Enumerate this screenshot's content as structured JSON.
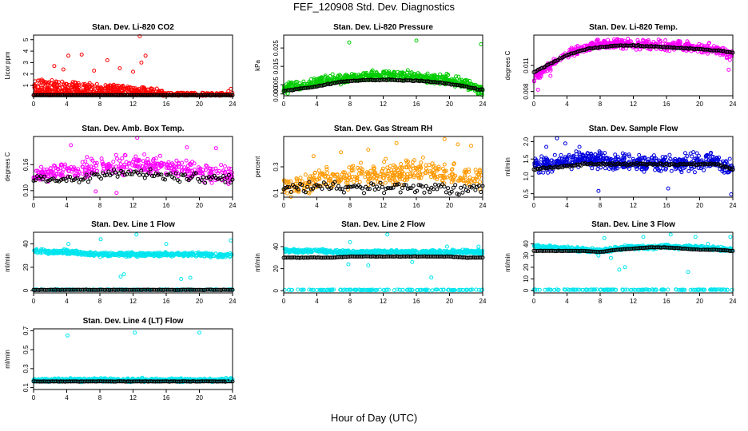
{
  "figure": {
    "title": "FEF_120908  Std. Dev. Diagnostics",
    "xlabel": "Hour of Day (UTC)"
  },
  "chart_data": [
    {
      "type": "scatter",
      "title": "Stan. Dev. Li-820 CO2",
      "ylabel": "Licor ppm",
      "xlim": [
        0,
        24
      ],
      "ylim": [
        0.1,
        5.4
      ],
      "xticks": [
        "0",
        "4",
        "8",
        "12",
        "16",
        "20",
        "24"
      ],
      "yticks": [
        {
          "v": 1,
          "l": "1"
        },
        {
          "v": 2,
          "l": "2"
        },
        {
          "v": 3,
          "l": "3"
        },
        {
          "v": 4,
          "l": "4"
        },
        {
          "v": 5,
          "l": "5"
        }
      ],
      "color": "#ff0000",
      "cloud": [
        0,
        0.15,
        0.95,
        0.65,
        0.38,
        0.05
      ],
      "cloud_end": 15.5,
      "cloud_after": [
        0.3,
        0.06
      ],
      "base": [
        0.15,
        0.15,
        0.15,
        0.15,
        0.15,
        0.15,
        0.15
      ],
      "outliers": [
        [
          12.8,
          5.3
        ],
        [
          13.5,
          3.6
        ],
        [
          4.2,
          3.6
        ],
        [
          5.8,
          3.7
        ],
        [
          8.9,
          3.2
        ],
        [
          13.0,
          3.0
        ],
        [
          2.5,
          2.7
        ],
        [
          3.6,
          2.4
        ],
        [
          10.4,
          2.5
        ],
        [
          7.3,
          2.3
        ],
        [
          12.0,
          2.2
        ],
        [
          23.8,
          0.7
        ],
        [
          23.5,
          0.5
        ]
      ]
    },
    {
      "type": "scatter",
      "title": "Stan. Dev. Li-820 Pressure",
      "ylabel": "kPa",
      "xlim": [
        0,
        24
      ],
      "ylim": [
        -0.001,
        0.032
      ],
      "xticks": [
        "0",
        "4",
        "8",
        "12",
        "16",
        "20",
        "24"
      ],
      "yticks": [
        {
          "v": 0.0,
          "l": "0.000"
        },
        {
          "v": 0.005,
          "l": "0.005"
        },
        {
          "v": 0.015,
          "l": "0.015"
        },
        {
          "v": 0.025,
          "l": "0.025"
        }
      ],
      "color": "#00cc00",
      "cloud": [
        0.0035,
        0.0045,
        0.0068,
        0.0078,
        0.0085,
        0.0095,
        0.0105,
        0.01,
        0.0092,
        0.0085,
        0.0075,
        0.0055,
        0.0015
      ],
      "cloud_spread": 0.0038,
      "base": [
        0.0015,
        0.0028,
        0.004,
        0.006,
        0.007,
        0.0075,
        0.0078,
        0.0075,
        0.0072,
        0.0065,
        0.0055,
        0.004,
        0.002
      ],
      "outliers": [
        [
          7.9,
          0.028
        ],
        [
          16.0,
          0.029
        ],
        [
          23.8,
          0.027
        ],
        [
          0.5,
          0.0002
        ],
        [
          23.5,
          0.0002
        ]
      ]
    },
    {
      "type": "scatter",
      "title": "Stan. Dev. Li-820 Temp.",
      "ylabel": "degrees C",
      "xlim": [
        0,
        24
      ],
      "ylim": [
        0.0075,
        0.0145
      ],
      "xticks": [
        "0",
        "4",
        "8",
        "12",
        "16",
        "20",
        "24"
      ],
      "yticks": [
        {
          "v": 0.008,
          "l": "0.008"
        },
        {
          "v": 0.011,
          "l": "0.011"
        }
      ],
      "color": "#ff00ff",
      "cloud": [
        0.0095,
        0.011,
        0.0123,
        0.013,
        0.0134,
        0.0135,
        0.0135,
        0.0134,
        0.0133,
        0.0132,
        0.0131,
        0.0128,
        0.012
      ],
      "cloud_spread": 0.0008,
      "base": [
        0.0102,
        0.0112,
        0.0122,
        0.0128,
        0.0131,
        0.0133,
        0.0133,
        0.0132,
        0.0131,
        0.013,
        0.0129,
        0.0127,
        0.0125
      ],
      "outliers": [
        [
          0.5,
          0.0082
        ],
        [
          2.0,
          0.0098
        ],
        [
          23.5,
          0.0105
        ]
      ]
    },
    {
      "type": "scatter",
      "title": "Stan. Dev. Amb. Box Temp.",
      "ylabel": "degrees C",
      "xlim": [
        0,
        24
      ],
      "ylim": [
        0.085,
        0.225
      ],
      "xticks": [
        "0",
        "4",
        "8",
        "12",
        "16",
        "20",
        "24"
      ],
      "yticks": [
        {
          "v": 0.1,
          "l": "0.10"
        },
        {
          "v": 0.16,
          "l": "0.16"
        }
      ],
      "color": "#ff00ff",
      "cloud": [
        0.135,
        0.14,
        0.145,
        0.15,
        0.155,
        0.16,
        0.16,
        0.158,
        0.155,
        0.15,
        0.145,
        0.14,
        0.135
      ],
      "cloud_spread": 0.03,
      "base": [
        0.13,
        0.128,
        0.125,
        0.128,
        0.138,
        0.142,
        0.14,
        0.138,
        0.135,
        0.132,
        0.13,
        0.128,
        0.125
      ],
      "outliers": [
        [
          12.5,
          0.222
        ],
        [
          4.5,
          0.205
        ],
        [
          18.5,
          0.2
        ],
        [
          22.0,
          0.198
        ],
        [
          7.5,
          0.098
        ],
        [
          10.0,
          0.095
        ]
      ]
    },
    {
      "type": "scatter",
      "title": "Stan. Dev. Gas Stream RH",
      "ylabel": "percent",
      "xlim": [
        0,
        24
      ],
      "ylim": [
        0.07,
        0.53
      ],
      "xticks": [
        "0",
        "4",
        "8",
        "12",
        "16",
        "20",
        "24"
      ],
      "yticks": [
        {
          "v": 0.1,
          "l": "0.1"
        },
        {
          "v": 0.3,
          "l": "0.3"
        }
      ],
      "color": "#ff9900",
      "cloud": [
        0.15,
        0.16,
        0.2,
        0.22,
        0.23,
        0.24,
        0.24,
        0.25,
        0.26,
        0.25,
        0.24,
        0.23,
        0.22
      ],
      "cloud_spread": 0.12,
      "base": [
        0.15,
        0.14,
        0.14,
        0.14,
        0.14,
        0.14,
        0.14,
        0.14,
        0.14,
        0.14,
        0.14,
        0.14,
        0.14
      ],
      "outliers": [
        [
          10.2,
          0.43
        ],
        [
          13.6,
          0.48
        ],
        [
          19.4,
          0.51
        ],
        [
          21.0,
          0.47
        ],
        [
          3.6,
          0.38
        ],
        [
          6.9,
          0.41
        ],
        [
          12.3,
          0.36
        ],
        [
          16.8,
          0.37
        ],
        [
          22.6,
          0.46
        ],
        [
          9.3,
          0.33
        ],
        [
          15.0,
          0.34
        ],
        [
          18.0,
          0.3
        ],
        [
          20.5,
          0.32
        ],
        [
          14.2,
          0.29
        ],
        [
          11.0,
          0.26
        ],
        [
          22.3,
          0.28
        ]
      ]
    },
    {
      "type": "scatter",
      "title": "Stan. Dev. Sample Flow",
      "ylabel": "ml/min",
      "xlim": [
        0,
        24
      ],
      "ylim": [
        0.4,
        2.15
      ],
      "xticks": [
        "0",
        "4",
        "8",
        "12",
        "16",
        "20",
        "24"
      ],
      "yticks": [
        {
          "v": 0.5,
          "l": "0.5"
        },
        {
          "v": 1.0,
          "l": "1.0"
        },
        {
          "v": 1.5,
          "l": "1.5"
        },
        {
          "v": 2.0,
          "l": "2.0"
        }
      ],
      "color": "#0000dd",
      "cloud": [
        1.3,
        1.35,
        1.45,
        1.5,
        1.45,
        1.42,
        1.4,
        1.4,
        1.4,
        1.4,
        1.4,
        1.4,
        1.3
      ],
      "cloud_spread": 0.35,
      "base": [
        1.2,
        1.25,
        1.3,
        1.35,
        1.35,
        1.35,
        1.35,
        1.35,
        1.35,
        1.35,
        1.35,
        1.35,
        1.2
      ],
      "outliers": [
        [
          2.8,
          2.1
        ],
        [
          3.8,
          1.95
        ],
        [
          1.5,
          1.85
        ],
        [
          5.5,
          1.85
        ],
        [
          7.8,
          0.58
        ],
        [
          16.2,
          0.65
        ],
        [
          23.8,
          0.48
        ]
      ]
    },
    {
      "type": "scatter",
      "title": "Stan. Dev. Line 1 Flow",
      "ylabel": "ml/min",
      "xlim": [
        0,
        24
      ],
      "ylim": [
        -2,
        50
      ],
      "xticks": [
        "0",
        "4",
        "8",
        "12",
        "16",
        "20",
        "24"
      ],
      "yticks": [
        {
          "v": 0,
          "l": "0"
        },
        {
          "v": 20,
          "l": "20"
        },
        {
          "v": 40,
          "l": "40"
        }
      ],
      "color": "#00e5ee",
      "cloud": [
        34,
        33,
        33,
        32,
        31,
        31,
        31,
        31,
        31,
        31,
        31,
        30,
        30
      ],
      "cloud_spread": 2.5,
      "base": [
        0.6,
        0.6,
        0.6,
        0.6,
        0.6,
        0.6,
        0.6,
        0.6,
        0.6,
        0.6,
        0.6,
        0.6,
        0.6
      ],
      "outliers": [
        [
          4.2,
          40
        ],
        [
          8.1,
          44
        ],
        [
          12.4,
          48
        ],
        [
          16.0,
          40
        ],
        [
          23.8,
          43
        ],
        [
          10.5,
          12
        ],
        [
          10.9,
          14
        ],
        [
          17.8,
          10
        ],
        [
          18.9,
          11
        ]
      ]
    },
    {
      "type": "scatter",
      "title": "Stan. Dev. Line 2 Flow",
      "ylabel": "ml/min",
      "xlim": [
        0,
        24
      ],
      "ylim": [
        -2,
        53
      ],
      "xticks": [
        "0",
        "4",
        "8",
        "12",
        "16",
        "20",
        "24"
      ],
      "yticks": [
        {
          "v": 0,
          "l": "0"
        },
        {
          "v": 20,
          "l": "20"
        },
        {
          "v": 40,
          "l": "40"
        }
      ],
      "color": "#00e5ee",
      "cloud": [
        37,
        36,
        36,
        35,
        35,
        35,
        35,
        35,
        35,
        35,
        35,
        35,
        35
      ],
      "cloud_spread": 2.5,
      "base": [
        30,
        30,
        30,
        30,
        31,
        31,
        31,
        31,
        31,
        31,
        31,
        30,
        30
      ],
      "outliers": [
        [
          12.5,
          51
        ],
        [
          8.0,
          44
        ],
        [
          23.5,
          40
        ],
        [
          17.8,
          12
        ],
        [
          19.7,
          40
        ],
        [
          7.8,
          24
        ],
        [
          10.2,
          23
        ],
        [
          15.5,
          26
        ]
      ]
    },
    {
      "type": "scatter",
      "title": "Stan. Dev. Line 3 Flow",
      "ylabel": "ml/min",
      "xlim": [
        0,
        24
      ],
      "ylim": [
        -2,
        50
      ],
      "xticks": [
        "0",
        "4",
        "8",
        "12",
        "16",
        "20",
        "24"
      ],
      "yticks": [
        {
          "v": 0,
          "l": "0"
        },
        {
          "v": 10,
          "l": "10"
        },
        {
          "v": 20,
          "l": "20"
        },
        {
          "v": 30,
          "l": "30"
        },
        {
          "v": 40,
          "l": "40"
        }
      ],
      "color": "#00e5ee",
      "cloud": [
        38,
        37,
        36,
        35,
        34,
        36,
        37,
        37,
        38,
        37,
        37,
        36,
        35
      ],
      "cloud_spread": 2.5,
      "base": [
        34,
        34,
        34,
        34,
        33,
        35,
        36,
        37,
        37,
        36,
        35,
        35,
        34
      ],
      "outliers": [
        [
          8.5,
          45
        ],
        [
          13.2,
          46
        ],
        [
          16.5,
          48
        ],
        [
          19.5,
          46
        ],
        [
          23.7,
          46
        ],
        [
          10.3,
          18
        ],
        [
          11.0,
          20
        ],
        [
          18.6,
          16
        ],
        [
          7.8,
          30
        ],
        [
          9.3,
          28
        ],
        [
          20.2,
          38
        ],
        [
          21.0,
          40
        ]
      ]
    },
    {
      "type": "scatter",
      "title": "Stan. Dev. Line 4 (LT) Flow",
      "ylabel": "ml/min",
      "xlim": [
        0,
        24
      ],
      "ylim": [
        0.08,
        0.72
      ],
      "xticks": [
        "0",
        "4",
        "8",
        "12",
        "16",
        "20",
        "24"
      ],
      "yticks": [
        {
          "v": 0.1,
          "l": "0.1"
        },
        {
          "v": 0.3,
          "l": "0.3"
        },
        {
          "v": 0.5,
          "l": "0.5"
        },
        {
          "v": 0.7,
          "l": "0.7"
        }
      ],
      "color": "#00e5ee",
      "cloud": [
        0.18,
        0.18,
        0.18,
        0.18,
        0.18,
        0.18,
        0.18,
        0.18,
        0.18,
        0.18,
        0.18,
        0.18,
        0.18
      ],
      "cloud_spread": 0.025,
      "base": [
        0.165,
        0.165,
        0.165,
        0.165,
        0.165,
        0.165,
        0.165,
        0.165,
        0.165,
        0.165,
        0.165,
        0.165,
        0.165
      ],
      "outliers": [
        [
          4.1,
          0.65
        ],
        [
          12.2,
          0.68
        ],
        [
          20.0,
          0.68
        ],
        [
          23.8,
          0.2
        ],
        [
          23.5,
          0.18
        ]
      ]
    }
  ]
}
